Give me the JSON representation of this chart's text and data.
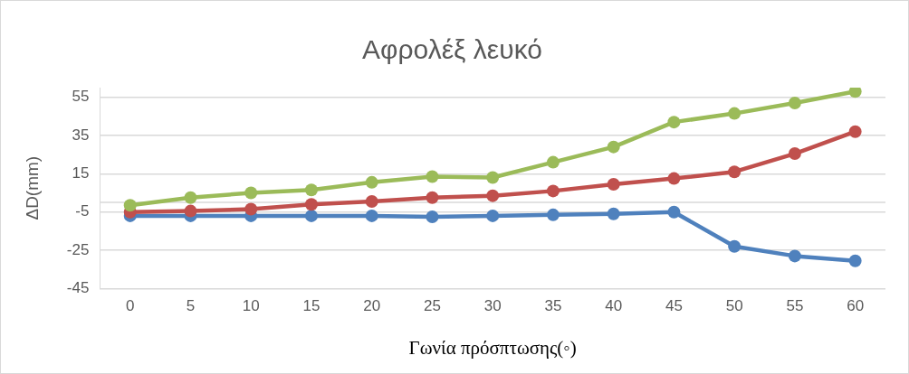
{
  "chart_data": {
    "type": "line",
    "title": "Αφρολέξ λευκό",
    "xlabel": "Γωνία πρόσπτωσης(◦)",
    "ylabel": "ΔD(mm)",
    "categories": [
      "0",
      "5",
      "10",
      "15",
      "20",
      "25",
      "30",
      "35",
      "40",
      "45",
      "50",
      "55",
      "60"
    ],
    "series": [
      {
        "color": "#4f81bd",
        "values": [
          -7,
          -7,
          -7,
          -7,
          -7,
          -7.5,
          -7,
          -6.5,
          -6,
          -5,
          -23,
          -28,
          -30.5
        ]
      },
      {
        "color": "#c0504d",
        "values": [
          -5,
          -4.5,
          -3.5,
          -1,
          0.5,
          2.5,
          3.5,
          6,
          9.5,
          12.5,
          16,
          25.5,
          37
        ]
      },
      {
        "color": "#9bbb59",
        "values": [
          -1.5,
          2.5,
          5,
          6.5,
          10.5,
          13.5,
          13,
          21,
          29,
          42,
          46.5,
          52,
          58
        ]
      }
    ],
    "ylim": [
      -45,
      60
    ],
    "yticks": [
      -45,
      -25,
      -5,
      15,
      35,
      55
    ],
    "grid": "y",
    "marker": "circle",
    "line_style": "solid",
    "legend": false,
    "ref_lines": [
      {
        "axis": "y",
        "value": 0,
        "color": "#d9d9d9"
      }
    ]
  }
}
